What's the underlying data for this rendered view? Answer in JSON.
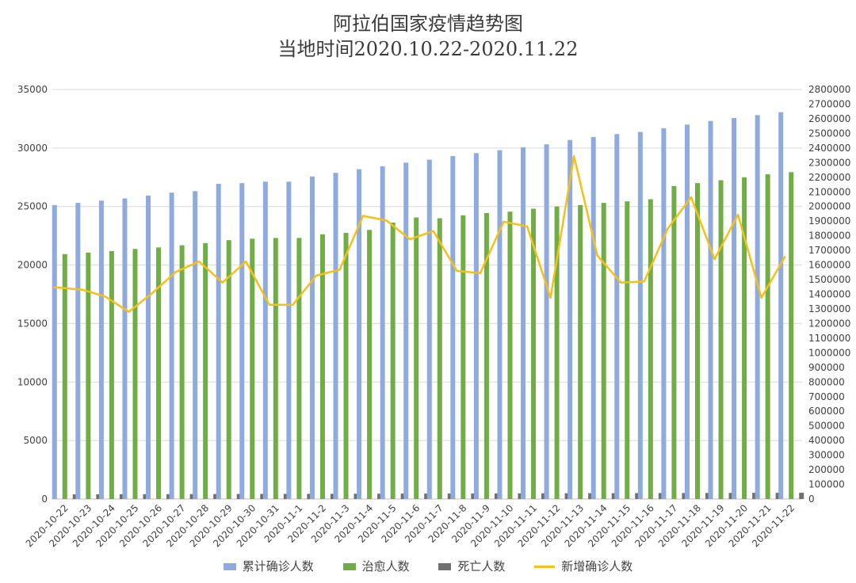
{
  "chart_data": {
    "type": "bar",
    "title": "阿拉伯国家疫情趋势图",
    "subtitle": "当地时间2020.10.22-2020.11.22",
    "categories": [
      "2020-10-22",
      "2020-10-23",
      "2020-10-24",
      "2020-10-25",
      "2020-10-26",
      "2020-10-27",
      "2020-10-28",
      "2020-10-29",
      "2020-10-30",
      "2020-10-31",
      "2020-11-1",
      "2020-11-2",
      "2020-11-3",
      "2020-11-4",
      "2020-11-5",
      "2020-11-6",
      "2020-11-7",
      "2020-11-8",
      "2020-11-9",
      "2020-11-10",
      "2020-11-11",
      "2020-11-12",
      "2020-11-13",
      "2020-11-14",
      "2020-11-15",
      "2020-11-16",
      "2020-11-17",
      "2020-11-18",
      "2020-11-19",
      "2020-11-20",
      "2020-11-21",
      "2020-11-22"
    ],
    "left_axis": {
      "min": 0,
      "max": 35000,
      "step": 5000,
      "ticks": [
        "0",
        "5000",
        "10000",
        "15000",
        "20000",
        "25000",
        "30000",
        "35000"
      ]
    },
    "right_axis": {
      "min": 0,
      "max": 2800000,
      "step": 100000,
      "ticks": [
        "0",
        "100000",
        "200000",
        "300000",
        "400000",
        "500000",
        "600000",
        "700000",
        "800000",
        "900000",
        "1000000",
        "1100000",
        "1200000",
        "1300000",
        "1400000",
        "1500000",
        "1600000",
        "1700000",
        "1800000",
        "1900000",
        "2000000",
        "2100000",
        "2200000",
        "2300000",
        "2400000",
        "2500000",
        "2600000",
        "2700000",
        "2800000"
      ]
    },
    "series": [
      {
        "name": "累计确诊人数",
        "type": "bar",
        "axis": "right",
        "color": "#8faadc",
        "values": [
          2010000,
          2025000,
          2040000,
          2055000,
          2075000,
          2095000,
          2105000,
          2155000,
          2160000,
          2170000,
          2170000,
          2205000,
          2230000,
          2255000,
          2275000,
          2300000,
          2320000,
          2345000,
          2365000,
          2385000,
          2405000,
          2425000,
          2455000,
          2475000,
          2495000,
          2510000,
          2535000,
          2560000,
          2585000,
          2605000,
          2625000,
          2645000
        ]
      },
      {
        "name": "治愈人数",
        "type": "bar",
        "axis": "right",
        "color": "#70ad47",
        "values": [
          1675000,
          1685000,
          1695000,
          1710000,
          1720000,
          1735000,
          1750000,
          1770000,
          1780000,
          1785000,
          1785000,
          1810000,
          1820000,
          1840000,
          1890000,
          1925000,
          1920000,
          1940000,
          1955000,
          1965000,
          1985000,
          2000000,
          2010000,
          2025000,
          2035000,
          2050000,
          2140000,
          2160000,
          2180000,
          2200000,
          2220000,
          2235000
        ]
      },
      {
        "name": "死亡人数",
        "type": "bar",
        "axis": "right",
        "color": "#707070",
        "values": [
          32000,
          32500,
          33000,
          33300,
          33600,
          34000,
          34300,
          34700,
          35000,
          35400,
          35700,
          36100,
          36400,
          36800,
          37100,
          37500,
          37800,
          38200,
          38500,
          38900,
          39200,
          39600,
          39900,
          40300,
          40600,
          41000,
          41300,
          41700,
          42000,
          42400,
          42700,
          43100
        ]
      },
      {
        "name": "新增确诊人数",
        "type": "line",
        "axis": "left",
        "color": "#f5c018",
        "values": [
          18100,
          17900,
          17300,
          16000,
          17600,
          19400,
          20300,
          18500,
          20300,
          16600,
          16600,
          19100,
          19600,
          24200,
          23800,
          22200,
          22900,
          19500,
          19300,
          23700,
          23300,
          17200,
          29300,
          20800,
          18500,
          18600,
          23100,
          25800,
          20500,
          24300,
          17200,
          20700
        ]
      }
    ],
    "legend_position": "bottom",
    "grid": true
  }
}
